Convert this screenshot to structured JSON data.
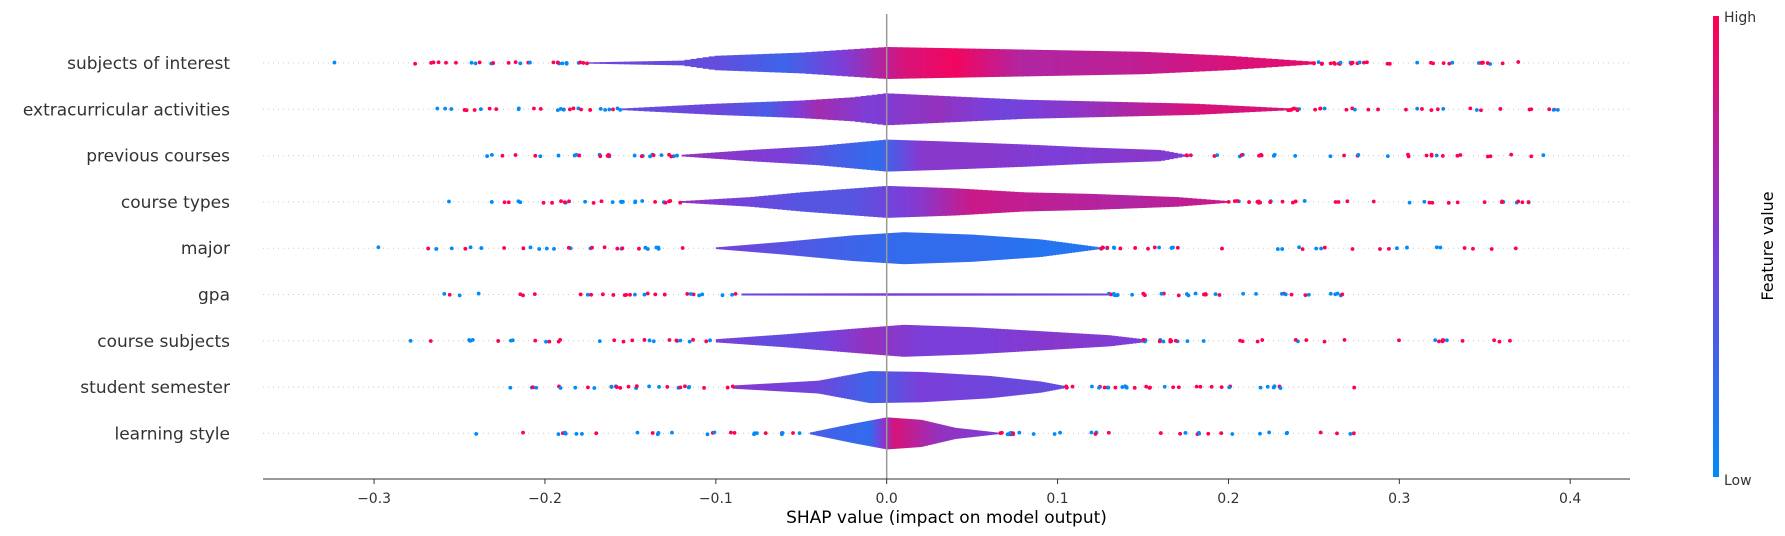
{
  "chart_data": {
    "type": "violin",
    "xlabel": "SHAP value (impact on model output)",
    "xlim": [
      -0.365,
      0.435
    ],
    "xticks": [
      {
        "value": -0.3,
        "label": "−0.3"
      },
      {
        "value": -0.2,
        "label": "−0.2"
      },
      {
        "value": -0.1,
        "label": "−0.1"
      },
      {
        "value": 0.0,
        "label": "0.0"
      },
      {
        "value": 0.1,
        "label": "0.1"
      },
      {
        "value": 0.2,
        "label": "0.2"
      },
      {
        "value": 0.3,
        "label": "0.3"
      },
      {
        "value": 0.4,
        "label": "0.4"
      }
    ],
    "colorbar": {
      "title": "Feature value",
      "high_label": "High",
      "low_label": "Low",
      "high_color": "#ff0052",
      "low_color": "#008bfa"
    },
    "features": [
      {
        "name": "subjects of interest",
        "min": -0.33,
        "max": 0.39,
        "core": [
          -0.175,
          0.25
        ],
        "density": [
          [
            -0.175,
            0.04
          ],
          [
            -0.12,
            0.15
          ],
          [
            -0.1,
            0.45
          ],
          [
            -0.05,
            0.65
          ],
          [
            0.0,
            1.0
          ],
          [
            0.05,
            0.9
          ],
          [
            0.1,
            0.8
          ],
          [
            0.15,
            0.7
          ],
          [
            0.2,
            0.45
          ],
          [
            0.25,
            0.08
          ]
        ],
        "colors": [
          [
            -0.175,
            0.45
          ],
          [
            -0.1,
            0.4
          ],
          [
            -0.06,
            0.25
          ],
          [
            -0.02,
            0.55
          ],
          [
            0.01,
            0.85
          ],
          [
            0.04,
            0.95
          ],
          [
            0.08,
            0.7
          ],
          [
            0.14,
            0.75
          ],
          [
            0.2,
            0.85
          ],
          [
            0.25,
            0.9
          ]
        ]
      },
      {
        "name": "extracurricular activities",
        "min": -0.33,
        "max": 0.395,
        "core": [
          -0.155,
          0.235
        ],
        "density": [
          [
            -0.155,
            0.05
          ],
          [
            -0.1,
            0.35
          ],
          [
            -0.05,
            0.55
          ],
          [
            -0.02,
            0.75
          ],
          [
            0.0,
            1.0
          ],
          [
            0.03,
            0.85
          ],
          [
            0.08,
            0.6
          ],
          [
            0.12,
            0.5
          ],
          [
            0.18,
            0.35
          ],
          [
            0.235,
            0.06
          ]
        ],
        "colors": [
          [
            -0.155,
            0.4
          ],
          [
            -0.1,
            0.45
          ],
          [
            -0.07,
            0.3
          ],
          [
            -0.04,
            0.65
          ],
          [
            -0.01,
            0.5
          ],
          [
            0.03,
            0.6
          ],
          [
            0.07,
            0.45
          ],
          [
            0.12,
            0.6
          ],
          [
            0.18,
            0.85
          ],
          [
            0.235,
            0.85
          ]
        ]
      },
      {
        "name": "previous courses",
        "min": -0.24,
        "max": 0.385,
        "core": [
          -0.12,
          0.175
        ],
        "density": [
          [
            -0.12,
            0.05
          ],
          [
            -0.08,
            0.35
          ],
          [
            -0.04,
            0.6
          ],
          [
            0.0,
            1.0
          ],
          [
            0.03,
            0.9
          ],
          [
            0.08,
            0.7
          ],
          [
            0.12,
            0.5
          ],
          [
            0.16,
            0.35
          ],
          [
            0.175,
            0.05
          ]
        ],
        "colors": [
          [
            -0.12,
            0.6
          ],
          [
            -0.06,
            0.5
          ],
          [
            -0.03,
            0.3
          ],
          [
            -0.005,
            0.2
          ],
          [
            0.02,
            0.55
          ],
          [
            0.06,
            0.55
          ],
          [
            0.1,
            0.5
          ],
          [
            0.15,
            0.55
          ],
          [
            0.175,
            0.5
          ]
        ]
      },
      {
        "name": "course types",
        "min": -0.265,
        "max": 0.395,
        "core": [
          -0.12,
          0.2
        ],
        "density": [
          [
            -0.12,
            0.05
          ],
          [
            -0.08,
            0.3
          ],
          [
            -0.05,
            0.6
          ],
          [
            0.0,
            1.0
          ],
          [
            0.04,
            0.85
          ],
          [
            0.08,
            0.6
          ],
          [
            0.12,
            0.5
          ],
          [
            0.17,
            0.3
          ],
          [
            0.2,
            0.05
          ]
        ],
        "colors": [
          [
            -0.12,
            0.6
          ],
          [
            -0.08,
            0.45
          ],
          [
            -0.05,
            0.35
          ],
          [
            -0.02,
            0.35
          ],
          [
            0.02,
            0.55
          ],
          [
            0.05,
            0.8
          ],
          [
            0.09,
            0.75
          ],
          [
            0.14,
            0.7
          ],
          [
            0.2,
            0.8
          ]
        ]
      },
      {
        "name": "major",
        "min": -0.3,
        "max": 0.38,
        "core": [
          -0.1,
          0.125
        ],
        "density": [
          [
            -0.1,
            0.05
          ],
          [
            -0.06,
            0.4
          ],
          [
            -0.02,
            0.8
          ],
          [
            0.01,
            1.0
          ],
          [
            0.05,
            0.85
          ],
          [
            0.09,
            0.55
          ],
          [
            0.125,
            0.05
          ]
        ],
        "colors": [
          [
            -0.1,
            0.5
          ],
          [
            -0.06,
            0.35
          ],
          [
            -0.02,
            0.25
          ],
          [
            0.01,
            0.2
          ],
          [
            0.05,
            0.2
          ],
          [
            0.09,
            0.15
          ],
          [
            0.125,
            0.15
          ]
        ]
      },
      {
        "name": "gpa",
        "min": -0.295,
        "max": 0.28,
        "core": [
          -0.085,
          0.13
        ],
        "density": [
          [
            -0.085,
            0.25
          ],
          [
            0.0,
            0.3
          ],
          [
            0.13,
            0.25
          ]
        ],
        "colors": [
          [
            -0.085,
            0.45
          ],
          [
            0.0,
            0.5
          ],
          [
            0.13,
            0.45
          ]
        ]
      },
      {
        "name": "course subjects",
        "min": -0.285,
        "max": 0.385,
        "core": [
          -0.1,
          0.15
        ],
        "density": [
          [
            -0.1,
            0.1
          ],
          [
            -0.06,
            0.4
          ],
          [
            -0.02,
            0.75
          ],
          [
            0.01,
            1.0
          ],
          [
            0.05,
            0.85
          ],
          [
            0.09,
            0.6
          ],
          [
            0.13,
            0.35
          ],
          [
            0.15,
            0.1
          ]
        ],
        "colors": [
          [
            -0.1,
            0.5
          ],
          [
            -0.07,
            0.4
          ],
          [
            -0.04,
            0.45
          ],
          [
            -0.01,
            0.6
          ],
          [
            0.02,
            0.5
          ],
          [
            0.06,
            0.5
          ],
          [
            0.1,
            0.55
          ],
          [
            0.15,
            0.5
          ]
        ]
      },
      {
        "name": "student semester",
        "min": -0.25,
        "max": 0.275,
        "core": [
          -0.09,
          0.105
        ],
        "density": [
          [
            -0.09,
            0.1
          ],
          [
            -0.04,
            0.4
          ],
          [
            -0.01,
            1.0
          ],
          [
            0.02,
            0.95
          ],
          [
            0.06,
            0.7
          ],
          [
            0.09,
            0.35
          ],
          [
            0.105,
            0.05
          ]
        ],
        "colors": [
          [
            -0.09,
            0.55
          ],
          [
            -0.04,
            0.45
          ],
          [
            -0.01,
            0.25
          ],
          [
            0.02,
            0.5
          ],
          [
            0.06,
            0.45
          ],
          [
            0.105,
            0.4
          ]
        ]
      },
      {
        "name": "learning style",
        "min": -0.25,
        "max": 0.275,
        "core": [
          -0.045,
          0.065
        ],
        "density": [
          [
            -0.045,
            0.05
          ],
          [
            -0.02,
            0.6
          ],
          [
            0.0,
            1.0
          ],
          [
            0.02,
            0.85
          ],
          [
            0.04,
            0.35
          ],
          [
            0.065,
            0.05
          ]
        ],
        "colors": [
          [
            -0.045,
            0.3
          ],
          [
            -0.01,
            0.2
          ],
          [
            0.005,
            0.85
          ],
          [
            0.03,
            0.6
          ],
          [
            0.065,
            0.5
          ]
        ]
      }
    ]
  }
}
